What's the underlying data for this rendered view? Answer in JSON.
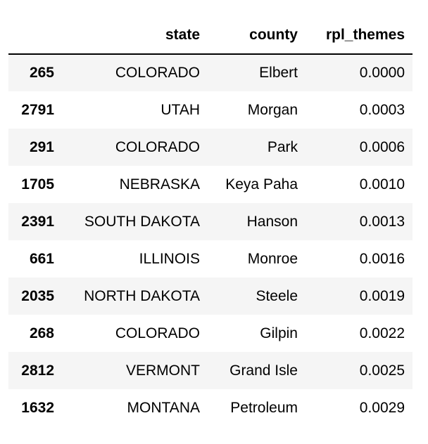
{
  "table": {
    "columns": [
      "",
      "state",
      "county",
      "rpl_themes"
    ],
    "rows": [
      {
        "index": "265",
        "state": "COLORADO",
        "county": "Elbert",
        "rpl_themes": "0.0000"
      },
      {
        "index": "2791",
        "state": "UTAH",
        "county": "Morgan",
        "rpl_themes": "0.0003"
      },
      {
        "index": "291",
        "state": "COLORADO",
        "county": "Park",
        "rpl_themes": "0.0006"
      },
      {
        "index": "1705",
        "state": "NEBRASKA",
        "county": "Keya Paha",
        "rpl_themes": "0.0010"
      },
      {
        "index": "2391",
        "state": "SOUTH DAKOTA",
        "county": "Hanson",
        "rpl_themes": "0.0013"
      },
      {
        "index": "661",
        "state": "ILLINOIS",
        "county": "Monroe",
        "rpl_themes": "0.0016"
      },
      {
        "index": "2035",
        "state": "NORTH DAKOTA",
        "county": "Steele",
        "rpl_themes": "0.0019"
      },
      {
        "index": "268",
        "state": "COLORADO",
        "county": "Gilpin",
        "rpl_themes": "0.0022"
      },
      {
        "index": "2812",
        "state": "VERMONT",
        "county": "Grand Isle",
        "rpl_themes": "0.0025"
      },
      {
        "index": "1632",
        "state": "MONTANA",
        "county": "Petroleum",
        "rpl_themes": "0.0029"
      }
    ]
  }
}
